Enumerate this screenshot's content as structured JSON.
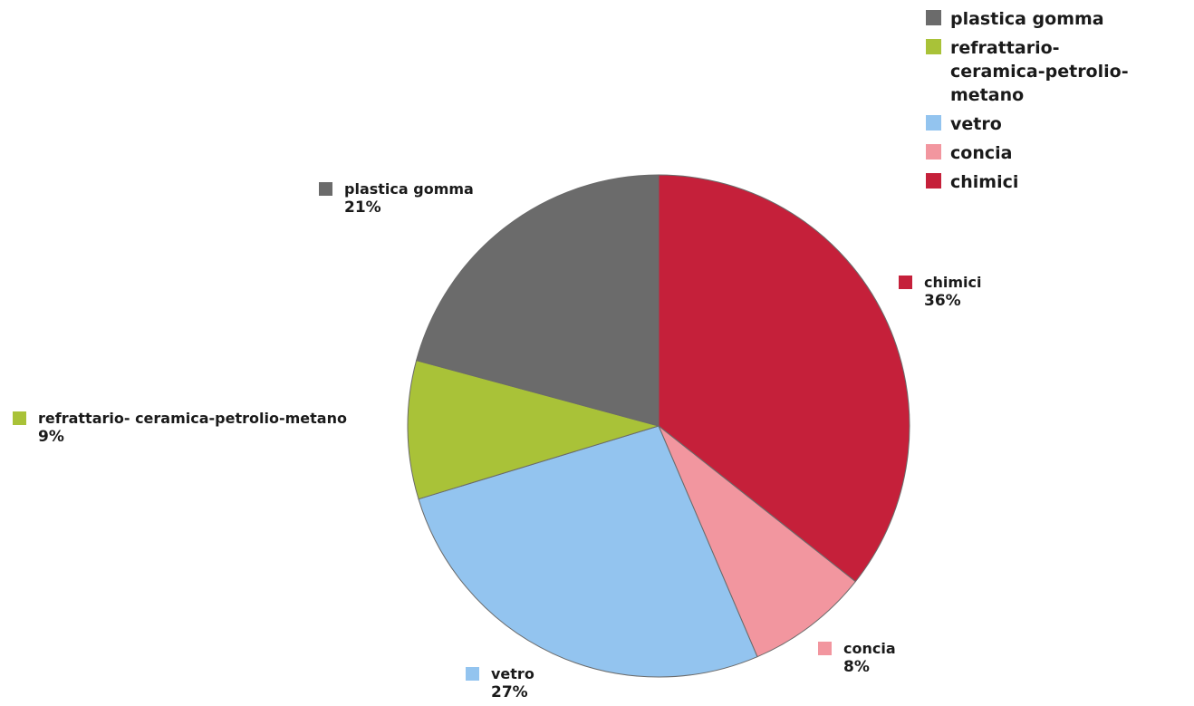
{
  "chart_data": {
    "type": "pie",
    "title": "",
    "slices": [
      {
        "label": "chimici",
        "value": 36,
        "display": "36%",
        "color": "#c5203a"
      },
      {
        "label": "concia",
        "value": 8,
        "display": "8%",
        "color": "#f2969f"
      },
      {
        "label": "vetro",
        "value": 27,
        "display": "27%",
        "color": "#93c4ef"
      },
      {
        "label": "refrattario- ceramica-petrolio-metano",
        "value": 9,
        "display": "9%",
        "color": "#a9c238"
      },
      {
        "label": "plastica gomma",
        "value": 21,
        "display": "21%",
        "color": "#6b6b6b"
      }
    ],
    "legend": {
      "placement": "top-right",
      "entries": [
        {
          "label": "plastica gomma",
          "color": "#6b6b6b"
        },
        {
          "label": "refrattario- ceramica-petrolio-metano",
          "color": "#a9c238"
        },
        {
          "label": "vetro",
          "color": "#93c4ef"
        },
        {
          "label": "concia",
          "color": "#f2969f"
        },
        {
          "label": "chimici",
          "color": "#c5203a"
        }
      ]
    }
  }
}
